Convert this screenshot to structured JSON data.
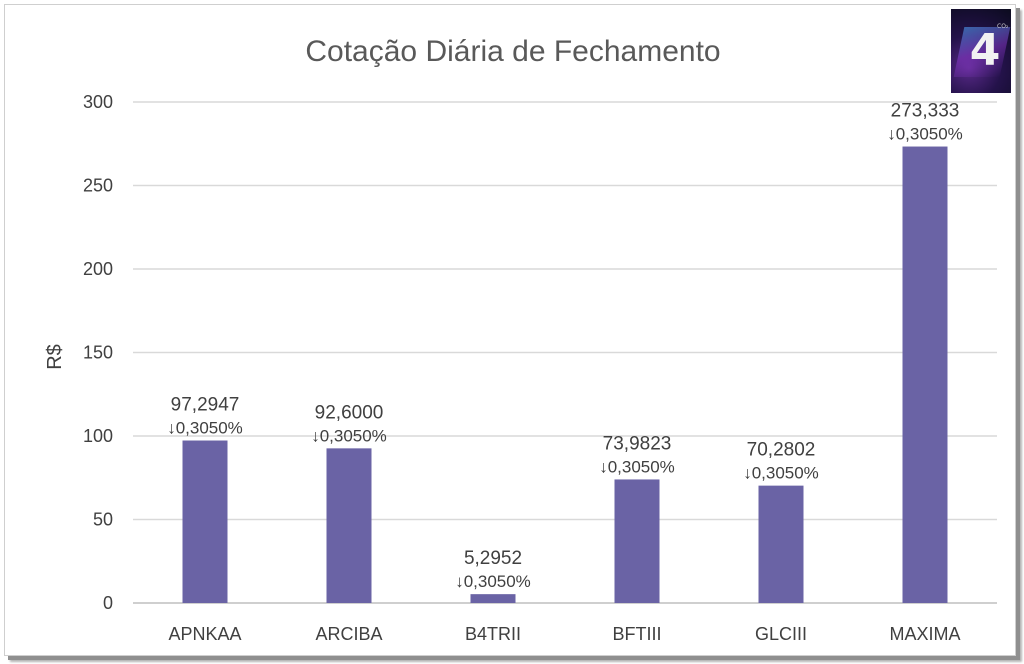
{
  "chart_data": {
    "type": "bar",
    "title": "Cotação Diária de Fechamento",
    "ylabel": "R$",
    "xlabel": "",
    "ylim": [
      0,
      300
    ],
    "yticks": [
      0,
      50,
      100,
      150,
      200,
      250,
      300
    ],
    "grid": true,
    "bar_color": "#6a63a5",
    "categories": [
      "APNKAA",
      "ARCIBA",
      "B4TRII",
      "BFTIII",
      "GLCIII",
      "MAXIMA"
    ],
    "values": [
      97.2947,
      92.6,
      5.2952,
      73.9823,
      70.2802,
      273.333
    ],
    "value_labels": [
      "97,2947",
      "92,6000",
      "5,2952",
      "73,9823",
      "70,2802",
      "273,333"
    ],
    "change_labels": [
      "↓0,3050%",
      "↓0,3050%",
      "↓0,3050%",
      "↓0,3050%",
      "↓0,3050%",
      "↓0,3050%"
    ]
  },
  "logo": {
    "glyph": "4",
    "superscript": "CO₂"
  }
}
